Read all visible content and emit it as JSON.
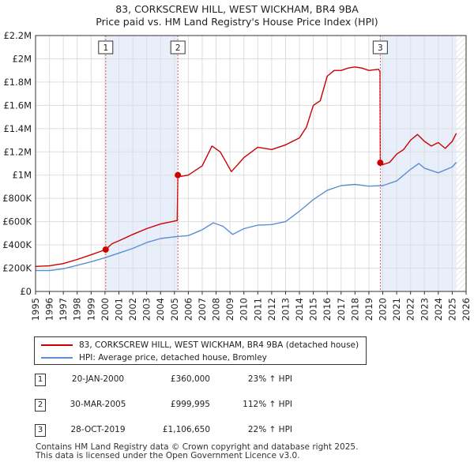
{
  "title_line1": "83, CORKSCREW HILL, WEST WICKHAM, BR4 9BA",
  "title_line2": "Price paid vs. HM Land Registry's House Price Index (HPI)",
  "legend": {
    "property_label": "83, CORKSCREW HILL, WEST WICKHAM, BR4 9BA (detached house)",
    "hpi_label": "HPI: Average price, detached house, Bromley"
  },
  "sales": [
    {
      "num": "1",
      "date": "20-JAN-2000",
      "price": "£360,000",
      "hpi": "23% ↑ HPI"
    },
    {
      "num": "2",
      "date": "30-MAR-2005",
      "price": "£999,995",
      "hpi": "112% ↑ HPI"
    },
    {
      "num": "3",
      "date": "28-OCT-2019",
      "price": "£1,106,650",
      "hpi": "22% ↑ HPI"
    }
  ],
  "footer_line1": "Contains HM Land Registry data © Crown copyright and database right 2025.",
  "footer_line2": "This data is licensed under the Open Government Licence v3.0.",
  "colors": {
    "property": "#cc0000",
    "hpi": "#5b8fd0",
    "shade": "#e8eefa",
    "grid": "#dddddd",
    "marker_line": "#e06060"
  },
  "chart_data": {
    "type": "line",
    "xlim": [
      1995,
      2026
    ],
    "ylim": [
      0,
      2200000
    ],
    "yticks": [
      0,
      200000,
      400000,
      600000,
      800000,
      1000000,
      1200000,
      1400000,
      1600000,
      1800000,
      2000000,
      2200000
    ],
    "ytick_labels": [
      "£0",
      "£200K",
      "£400K",
      "£600K",
      "£800K",
      "£1M",
      "£1.2M",
      "£1.4M",
      "£1.6M",
      "£1.8M",
      "£2M",
      "£2.2M"
    ],
    "xticks": [
      1995,
      1996,
      1997,
      1998,
      1999,
      2000,
      2001,
      2002,
      2003,
      2004,
      2005,
      2006,
      2007,
      2008,
      2009,
      2010,
      2011,
      2012,
      2013,
      2014,
      2015,
      2016,
      2017,
      2018,
      2019,
      2020,
      2021,
      2022,
      2023,
      2024,
      2025,
      2026
    ],
    "shaded_ranges": [
      [
        2000.05,
        2005.25
      ],
      [
        2019.82,
        2025.3
      ]
    ],
    "hatch_from": 2025.3,
    "markers": [
      {
        "label": "1",
        "x": 2000.05,
        "y": 360000
      },
      {
        "label": "2",
        "x": 2005.25,
        "y": 999995
      },
      {
        "label": "3",
        "x": 2019.82,
        "y": 1106650
      }
    ],
    "series": [
      {
        "name": "83, CORKSCREW HILL, WEST WICKHAM, BR4 9BA (detached house)",
        "x": [
          1995,
          1996,
          1997,
          1998,
          1999,
          2000.05,
          2000.5,
          2001,
          2002,
          2003,
          2004,
          2005.2,
          2005.25,
          2005.5,
          2006,
          2007,
          2007.7,
          2008.3,
          2009.1,
          2010,
          2011,
          2012,
          2013,
          2014,
          2014.5,
          2015,
          2015.5,
          2016,
          2016.5,
          2017,
          2017.5,
          2018,
          2018.5,
          2019,
          2019.7,
          2019.8,
          2019.82,
          2020,
          2020.5,
          2021,
          2021.5,
          2022,
          2022.5,
          2023,
          2023.5,
          2024,
          2024.5,
          2025,
          2025.3
        ],
        "y": [
          215000,
          220000,
          240000,
          275000,
          315000,
          360000,
          410000,
          435000,
          490000,
          540000,
          580000,
          610000,
          999995,
          990000,
          1000000,
          1080000,
          1250000,
          1200000,
          1030000,
          1150000,
          1240000,
          1220000,
          1260000,
          1320000,
          1410000,
          1600000,
          1640000,
          1850000,
          1900000,
          1900000,
          1920000,
          1930000,
          1920000,
          1900000,
          1910000,
          1890000,
          1106650,
          1090000,
          1110000,
          1180000,
          1220000,
          1300000,
          1350000,
          1290000,
          1250000,
          1280000,
          1230000,
          1290000,
          1360000
        ]
      },
      {
        "name": "HPI: Average price, detached house, Bromley",
        "x": [
          1995,
          1996,
          1997,
          1998,
          1999,
          2000,
          2001,
          2002,
          2003,
          2004,
          2005,
          2006,
          2007,
          2007.8,
          2008.5,
          2009.2,
          2010,
          2011,
          2012,
          2013,
          2014,
          2015,
          2016,
          2017,
          2018,
          2019,
          2020,
          2021,
          2022,
          2022.6,
          2023,
          2024,
          2025,
          2025.3
        ],
        "y": [
          180000,
          180000,
          195000,
          225000,
          255000,
          290000,
          330000,
          370000,
          420000,
          455000,
          470000,
          480000,
          530000,
          590000,
          560000,
          490000,
          540000,
          570000,
          575000,
          600000,
          690000,
          790000,
          870000,
          910000,
          920000,
          905000,
          910000,
          950000,
          1050000,
          1100000,
          1060000,
          1020000,
          1070000,
          1110000
        ]
      }
    ]
  }
}
